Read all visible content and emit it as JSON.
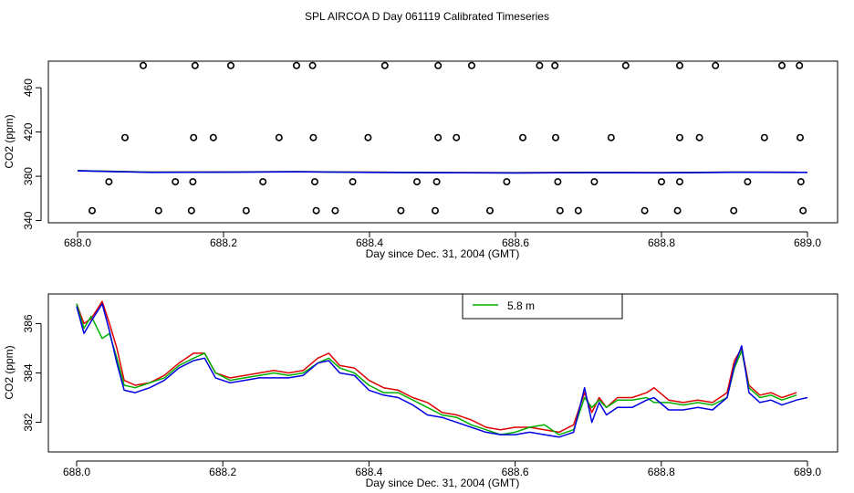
{
  "page_title": "SPL AIRCOA D  Day 061119  Calibrated Timeseries",
  "colors": {
    "red": "#e00000",
    "green": "#00b000",
    "blue": "#0000e0",
    "black": "#000000"
  },
  "chart_data": [
    {
      "type": "scatter",
      "title": "",
      "xlabel": "Day since Dec. 31, 2004 (GMT)",
      "ylabel": "CO2 (ppm)",
      "xlim": [
        688.0,
        689.0
      ],
      "ylim": [
        338,
        484
      ],
      "xticks": [
        688.0,
        688.2,
        688.4,
        688.6,
        688.8,
        689.0
      ],
      "xtick_labels": [
        "688.0",
        "688.2",
        "688.4",
        "688.6",
        "688.8",
        "689.0"
      ],
      "yticks": [
        340,
        380,
        420,
        460
      ],
      "ytick_labels": [
        "340",
        "380",
        "420",
        "460"
      ],
      "calibration_points": [
        {
          "x": 688.09,
          "y": 480
        },
        {
          "x": 688.161,
          "y": 480
        },
        {
          "x": 688.21,
          "y": 480
        },
        {
          "x": 688.3,
          "y": 480
        },
        {
          "x": 688.322,
          "y": 480
        },
        {
          "x": 688.421,
          "y": 480
        },
        {
          "x": 688.494,
          "y": 480
        },
        {
          "x": 688.54,
          "y": 480
        },
        {
          "x": 688.633,
          "y": 480
        },
        {
          "x": 688.654,
          "y": 480
        },
        {
          "x": 688.751,
          "y": 480
        },
        {
          "x": 688.825,
          "y": 480
        },
        {
          "x": 688.874,
          "y": 480
        },
        {
          "x": 688.965,
          "y": 480
        },
        {
          "x": 688.989,
          "y": 480
        },
        {
          "x": 688.065,
          "y": 415
        },
        {
          "x": 688.159,
          "y": 415
        },
        {
          "x": 688.186,
          "y": 415
        },
        {
          "x": 688.276,
          "y": 415
        },
        {
          "x": 688.323,
          "y": 415
        },
        {
          "x": 688.398,
          "y": 415
        },
        {
          "x": 688.494,
          "y": 415
        },
        {
          "x": 688.519,
          "y": 415
        },
        {
          "x": 688.61,
          "y": 415
        },
        {
          "x": 688.655,
          "y": 415
        },
        {
          "x": 688.731,
          "y": 415
        },
        {
          "x": 688.825,
          "y": 415
        },
        {
          "x": 688.852,
          "y": 415
        },
        {
          "x": 688.941,
          "y": 415
        },
        {
          "x": 688.99,
          "y": 415
        },
        {
          "x": 688.043,
          "y": 375
        },
        {
          "x": 688.134,
          "y": 375
        },
        {
          "x": 688.158,
          "y": 375
        },
        {
          "x": 688.254,
          "y": 375
        },
        {
          "x": 688.325,
          "y": 375
        },
        {
          "x": 688.377,
          "y": 375
        },
        {
          "x": 688.465,
          "y": 375
        },
        {
          "x": 688.492,
          "y": 375
        },
        {
          "x": 688.588,
          "y": 375
        },
        {
          "x": 688.658,
          "y": 375
        },
        {
          "x": 688.708,
          "y": 375
        },
        {
          "x": 688.8,
          "y": 375
        },
        {
          "x": 688.825,
          "y": 375
        },
        {
          "x": 688.918,
          "y": 375
        },
        {
          "x": 688.991,
          "y": 375
        },
        {
          "x": 688.02,
          "y": 349
        },
        {
          "x": 688.111,
          "y": 349
        },
        {
          "x": 688.156,
          "y": 349
        },
        {
          "x": 688.231,
          "y": 349
        },
        {
          "x": 688.327,
          "y": 349
        },
        {
          "x": 688.353,
          "y": 349
        },
        {
          "x": 688.443,
          "y": 349
        },
        {
          "x": 688.49,
          "y": 349
        },
        {
          "x": 688.565,
          "y": 349
        },
        {
          "x": 688.661,
          "y": 349
        },
        {
          "x": 688.686,
          "y": 349
        },
        {
          "x": 688.777,
          "y": 349
        },
        {
          "x": 688.822,
          "y": 349
        },
        {
          "x": 688.899,
          "y": 349
        },
        {
          "x": 688.994,
          "y": 349
        }
      ],
      "series": [
        {
          "name": "red",
          "color": "#e00000",
          "x": [
            688.0,
            688.1,
            688.2,
            688.3,
            688.4,
            688.5,
            688.6,
            688.7,
            688.8,
            688.9,
            688.985
          ],
          "y": [
            385.0,
            383.8,
            383.9,
            384.2,
            383.7,
            383.4,
            383.2,
            383.5,
            383.3,
            383.8,
            383.6
          ]
        },
        {
          "name": "green",
          "color": "#00b000",
          "x": [
            688.0,
            688.1,
            688.2,
            688.3,
            688.4,
            688.5,
            688.6,
            688.7,
            688.8,
            688.9,
            688.985
          ],
          "y": [
            385.1,
            383.7,
            383.8,
            384.1,
            383.6,
            383.3,
            383.1,
            383.4,
            383.2,
            383.7,
            383.5
          ]
        },
        {
          "name": "blue",
          "color": "#0000e0",
          "x": [
            688.0,
            688.1,
            688.2,
            688.3,
            688.4,
            688.5,
            688.6,
            688.7,
            688.8,
            688.9,
            689.0
          ],
          "y": [
            384.9,
            383.5,
            383.7,
            384.0,
            383.5,
            383.2,
            383.0,
            383.3,
            383.1,
            383.6,
            383.5
          ]
        }
      ]
    },
    {
      "type": "line",
      "title": "",
      "xlabel": "Day since Dec. 31, 2004 (GMT)",
      "ylabel": "CO2 (ppm)",
      "xlim": [
        688.0,
        689.0
      ],
      "ylim": [
        380.8,
        387.2
      ],
      "xticks": [
        688.0,
        688.2,
        688.4,
        688.6,
        688.8,
        689.0
      ],
      "xtick_labels": [
        "688.0",
        "688.2",
        "688.4",
        "688.6",
        "688.8",
        "689.0"
      ],
      "yticks": [
        382,
        384,
        386
      ],
      "ytick_labels": [
        "382",
        "384",
        "386"
      ],
      "legend": {
        "placement": "top-center",
        "entries": [
          {
            "label": "5.8 m",
            "color": "#00b000"
          }
        ]
      },
      "series": [
        {
          "name": "red",
          "color": "#e00000",
          "x": [
            688.0,
            688.01,
            688.02,
            688.035,
            688.045,
            688.055,
            688.065,
            688.08,
            688.1,
            688.12,
            688.14,
            688.16,
            688.175,
            688.19,
            688.21,
            688.23,
            688.25,
            688.27,
            688.29,
            688.31,
            688.33,
            688.345,
            688.36,
            688.38,
            688.4,
            688.42,
            688.44,
            688.46,
            688.48,
            688.5,
            688.52,
            688.54,
            688.56,
            688.58,
            688.6,
            688.62,
            688.64,
            688.66,
            688.68,
            688.695,
            688.705,
            688.715,
            688.725,
            688.74,
            688.76,
            688.78,
            688.79,
            688.81,
            688.83,
            688.85,
            688.87,
            688.89,
            688.9,
            688.91,
            688.92,
            688.935,
            688.95,
            688.965,
            688.985
          ],
          "y": [
            386.8,
            386.0,
            386.2,
            386.9,
            386.0,
            385.0,
            383.7,
            383.5,
            383.6,
            383.9,
            384.4,
            384.8,
            384.8,
            384.0,
            383.8,
            383.9,
            384.0,
            384.1,
            384.0,
            384.1,
            384.6,
            384.8,
            384.3,
            384.2,
            383.7,
            383.4,
            383.3,
            383.0,
            382.8,
            382.4,
            382.3,
            382.1,
            381.8,
            381.7,
            381.8,
            381.8,
            381.7,
            381.6,
            381.9,
            383.2,
            382.4,
            383.0,
            382.6,
            383.0,
            383.0,
            383.2,
            383.4,
            382.9,
            382.8,
            382.9,
            382.8,
            383.2,
            384.5,
            385.0,
            383.5,
            383.1,
            383.2,
            383.0,
            383.2
          ]
        },
        {
          "name": "green",
          "color": "#00b000",
          "x": [
            688.0,
            688.01,
            688.02,
            688.035,
            688.045,
            688.055,
            688.065,
            688.08,
            688.1,
            688.12,
            688.14,
            688.16,
            688.175,
            688.19,
            688.21,
            688.23,
            688.25,
            688.27,
            688.29,
            688.31,
            688.33,
            688.345,
            688.36,
            688.38,
            688.4,
            688.42,
            688.44,
            688.46,
            688.48,
            688.5,
            688.52,
            688.54,
            688.56,
            688.58,
            688.6,
            688.62,
            688.64,
            688.66,
            688.68,
            688.695,
            688.705,
            688.715,
            688.725,
            688.74,
            688.76,
            688.78,
            688.79,
            688.81,
            688.83,
            688.85,
            688.87,
            688.89,
            688.9,
            688.91,
            688.92,
            688.935,
            688.95,
            688.965,
            688.985
          ],
          "y": [
            386.8,
            385.8,
            386.3,
            385.4,
            385.6,
            384.6,
            383.5,
            383.4,
            383.6,
            383.8,
            384.3,
            384.6,
            384.8,
            384.0,
            383.7,
            383.8,
            383.9,
            384.0,
            383.9,
            384.0,
            384.4,
            384.6,
            384.2,
            384.0,
            383.5,
            383.2,
            383.2,
            382.9,
            382.6,
            382.3,
            382.2,
            381.9,
            381.7,
            381.5,
            381.6,
            381.8,
            381.9,
            381.5,
            381.7,
            383.0,
            382.6,
            382.9,
            382.6,
            382.9,
            382.9,
            383.0,
            382.8,
            382.8,
            382.7,
            382.8,
            382.7,
            383.0,
            384.2,
            384.9,
            383.4,
            383.0,
            383.1,
            382.9,
            383.1
          ]
        },
        {
          "name": "blue",
          "color": "#0000e0",
          "x": [
            688.0,
            688.01,
            688.02,
            688.035,
            688.045,
            688.055,
            688.065,
            688.08,
            688.1,
            688.12,
            688.14,
            688.16,
            688.175,
            688.19,
            688.21,
            688.23,
            688.25,
            688.27,
            688.29,
            688.31,
            688.33,
            688.345,
            688.36,
            688.38,
            688.4,
            688.42,
            688.44,
            688.46,
            688.48,
            688.5,
            688.52,
            688.54,
            688.56,
            688.58,
            688.6,
            688.62,
            688.64,
            688.66,
            688.68,
            688.695,
            688.705,
            688.715,
            688.725,
            688.74,
            688.76,
            688.78,
            688.79,
            688.81,
            688.83,
            688.85,
            688.87,
            688.89,
            688.9,
            688.91,
            688.92,
            688.935,
            688.95,
            688.965,
            688.985,
            689.0
          ],
          "y": [
            386.7,
            385.6,
            386.1,
            386.8,
            385.7,
            384.4,
            383.3,
            383.2,
            383.4,
            383.7,
            384.2,
            384.5,
            384.6,
            383.8,
            383.6,
            383.7,
            383.8,
            383.8,
            383.8,
            383.9,
            384.4,
            384.5,
            384.0,
            383.9,
            383.3,
            383.1,
            383.0,
            382.7,
            382.3,
            382.2,
            382.0,
            381.8,
            381.6,
            381.5,
            381.5,
            381.6,
            381.5,
            381.4,
            381.6,
            383.4,
            382.0,
            382.8,
            382.3,
            382.6,
            382.6,
            382.9,
            383.0,
            382.5,
            382.5,
            382.6,
            382.5,
            383.0,
            384.3,
            385.1,
            383.2,
            382.8,
            382.9,
            382.7,
            382.9,
            383.0
          ]
        }
      ]
    }
  ]
}
